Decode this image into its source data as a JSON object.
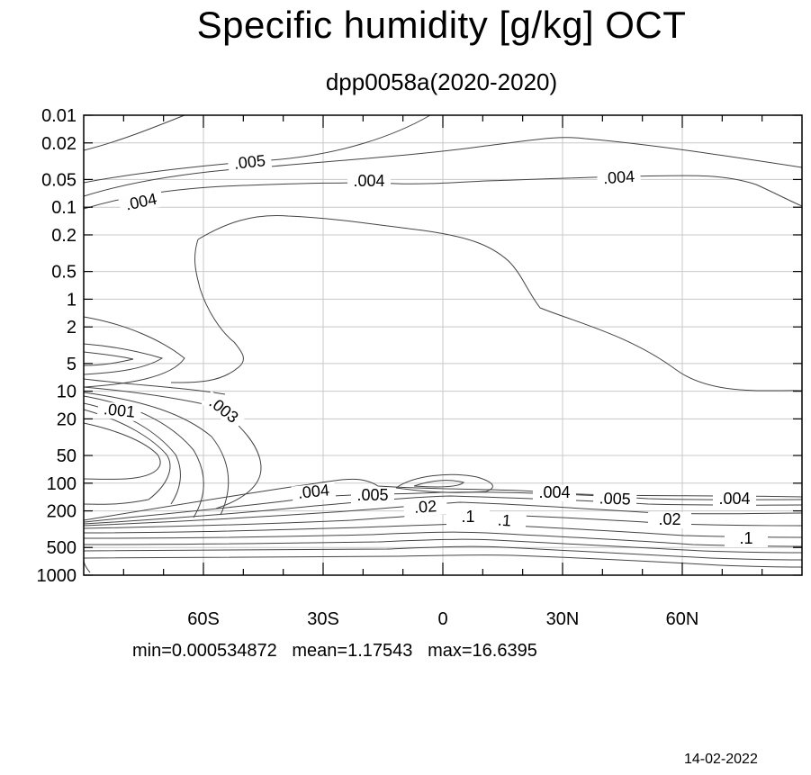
{
  "title": "Specific humidity [g/kg] OCT",
  "subtitle": "dpp0058a(2020-2020)",
  "stats": {
    "min": "min=0.000534872",
    "mean": "mean=1.17543",
    "max": "max=16.6395"
  },
  "date": "14-02-2022",
  "chart_data": {
    "type": "contour",
    "title": "Specific humidity [g/kg] OCT",
    "subtitle": "dpp0058a(2020-2020)",
    "x_axis": {
      "ticks": [
        -60,
        -30,
        0,
        30,
        60
      ],
      "tick_labels": [
        "60S",
        "30S",
        "0",
        "30N",
        "60N"
      ],
      "range": [
        -90,
        90
      ]
    },
    "y_axis": {
      "scale": "log",
      "reversed": true,
      "ticks": [
        0.01,
        0.02,
        0.05,
        0.1,
        0.2,
        0.5,
        1,
        2,
        5,
        10,
        20,
        50,
        100,
        200,
        500,
        1000
      ],
      "tick_labels": [
        "0.01",
        "0.02",
        "0.05",
        "0.1",
        "0.2",
        "0.5",
        "1",
        "2",
        "5",
        "10",
        "20",
        "50",
        "100",
        "200",
        "500",
        "1000"
      ],
      "range": [
        0.01,
        1000
      ]
    },
    "grid": true,
    "contour_labels": [
      ".005",
      ".004",
      ".004",
      ".004",
      ".001",
      ".003",
      ".004",
      ".005",
      ".004",
      ".005",
      ".004",
      ".02",
      ".1",
      ".1",
      ".02",
      ".1"
    ],
    "summary": {
      "min": 0.000534872,
      "mean": 1.17543,
      "max": 16.6395
    }
  }
}
